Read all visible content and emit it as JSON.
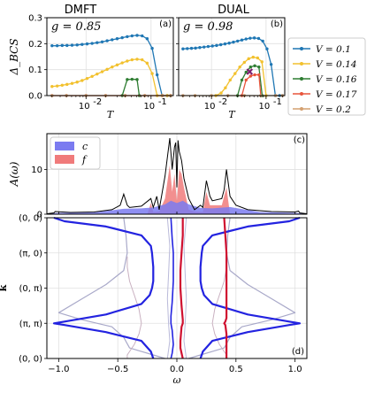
{
  "chart_data": [
    {
      "id": "a",
      "type": "line",
      "title": "DMFT",
      "panel_label": "(a)",
      "annotation": "g = 0.85",
      "ylabel": "Δ_BCS",
      "xlabel": "T",
      "xscale": "log",
      "xlim": [
        0.0025,
        0.22
      ],
      "ylim": [
        0,
        0.3
      ],
      "yticks": [
        "0.0",
        "0.1",
        "0.2",
        "0.3"
      ],
      "xticks": [
        {
          "value": 0.01,
          "label": "10",
          "exp": "-2"
        },
        {
          "value": 0.1,
          "label": "10",
          "exp": "-1"
        }
      ],
      "series": [
        {
          "name": "V = 0.1",
          "color": "#1f77b4",
          "x": [
            0.003,
            0.0036,
            0.0043,
            0.0051,
            0.0061,
            0.0073,
            0.0087,
            0.0104,
            0.0124,
            0.0148,
            0.0177,
            0.0211,
            0.0252,
            0.0301,
            0.036,
            0.043,
            0.051,
            0.061,
            0.073,
            0.087,
            0.104,
            0.124,
            0.148,
            0.177,
            0.2
          ],
          "y": [
            0.192,
            0.192,
            0.193,
            0.193,
            0.194,
            0.195,
            0.197,
            0.199,
            0.201,
            0.204,
            0.207,
            0.211,
            0.215,
            0.219,
            0.223,
            0.227,
            0.23,
            0.232,
            0.23,
            0.219,
            0.182,
            0.08,
            0.0,
            0.0,
            0.0
          ]
        },
        {
          "name": "V = 0.14",
          "color": "#f2c12e",
          "x": [
            0.003,
            0.0036,
            0.0043,
            0.0051,
            0.0061,
            0.0073,
            0.0087,
            0.0104,
            0.0124,
            0.0148,
            0.0177,
            0.0211,
            0.0252,
            0.0301,
            0.036,
            0.043,
            0.051,
            0.061,
            0.073,
            0.087,
            0.104,
            0.124,
            0.148,
            0.177,
            0.2
          ],
          "y": [
            0.035,
            0.037,
            0.04,
            0.043,
            0.047,
            0.052,
            0.058,
            0.066,
            0.074,
            0.083,
            0.092,
            0.101,
            0.11,
            0.118,
            0.126,
            0.133,
            0.138,
            0.14,
            0.138,
            0.125,
            0.085,
            0.0,
            0.0,
            0.0,
            0.0
          ]
        },
        {
          "name": "V = 0.16",
          "color": "#2e7d32",
          "x": [
            0.036,
            0.043,
            0.051,
            0.061,
            0.066
          ],
          "y": [
            0.0,
            0.062,
            0.063,
            0.062,
            0.0
          ]
        },
        {
          "name": "V = 0.17",
          "color": "#e8553c",
          "x": [
            0.003,
            0.005,
            0.01,
            0.02,
            0.04,
            0.08,
            0.15,
            0.2
          ],
          "y": [
            0,
            0,
            0,
            0,
            0,
            0,
            0,
            0
          ]
        },
        {
          "name": "V = 0.2",
          "color": "#d4a070",
          "x": [
            0.003,
            0.005,
            0.01,
            0.02,
            0.04,
            0.08,
            0.15,
            0.2
          ],
          "y": [
            0,
            0,
            0,
            0,
            0,
            0,
            0,
            0
          ]
        }
      ]
    },
    {
      "id": "b",
      "type": "line",
      "title": "DUAL",
      "panel_label": "(b)",
      "annotation": "g = 0.98",
      "xlabel": "T",
      "xscale": "log",
      "xlim": [
        0.0025,
        0.22
      ],
      "ylim": [
        0,
        0.3
      ],
      "xticks": [
        {
          "value": 0.01,
          "label": "10",
          "exp": "-2"
        },
        {
          "value": 0.1,
          "label": "10",
          "exp": "-1"
        }
      ],
      "special_marker": {
        "x": 0.05,
        "y": 0.092,
        "symbol": "x",
        "color": "#7b1f6e"
      },
      "series": [
        {
          "name": "V = 0.1",
          "color": "#1f77b4",
          "x": [
            0.003,
            0.0036,
            0.0043,
            0.0051,
            0.0061,
            0.0073,
            0.0087,
            0.0104,
            0.0124,
            0.0148,
            0.0177,
            0.0211,
            0.0252,
            0.0301,
            0.036,
            0.043,
            0.051,
            0.061,
            0.073,
            0.087,
            0.104,
            0.124,
            0.148,
            0.177,
            0.2
          ],
          "y": [
            0.18,
            0.181,
            0.182,
            0.183,
            0.185,
            0.187,
            0.189,
            0.191,
            0.193,
            0.196,
            0.199,
            0.202,
            0.206,
            0.21,
            0.214,
            0.218,
            0.221,
            0.222,
            0.22,
            0.21,
            0.18,
            0.12,
            0.0,
            0.0,
            0.0
          ]
        },
        {
          "name": "V = 0.14",
          "color": "#f2c12e",
          "x": [
            0.012,
            0.015,
            0.018,
            0.022,
            0.027,
            0.033,
            0.04,
            0.048,
            0.058,
            0.07,
            0.084,
            0.1
          ],
          "y": [
            0.0,
            0.01,
            0.03,
            0.06,
            0.085,
            0.11,
            0.128,
            0.142,
            0.148,
            0.145,
            0.13,
            0.0
          ]
        },
        {
          "name": "V = 0.16",
          "color": "#2e7d32",
          "x": [
            0.03,
            0.036,
            0.043,
            0.052,
            0.062,
            0.074,
            0.085
          ],
          "y": [
            0.0,
            0.06,
            0.09,
            0.11,
            0.115,
            0.11,
            0.0
          ]
        },
        {
          "name": "V = 0.17",
          "color": "#e8553c",
          "x": [
            0.036,
            0.043,
            0.052,
            0.062,
            0.074,
            0.08
          ],
          "y": [
            0.0,
            0.06,
            0.075,
            0.08,
            0.08,
            0.0
          ]
        },
        {
          "name": "V = 0.2",
          "color": "#d4a070",
          "x": [
            0.003,
            0.005,
            0.01,
            0.02,
            0.04,
            0.08,
            0.15,
            0.2
          ],
          "y": [
            0,
            0,
            0,
            0,
            0,
            0,
            0,
            0
          ]
        }
      ]
    },
    {
      "id": "c",
      "type": "area",
      "panel_label": "(c)",
      "ylabel": "A(ω)",
      "xlim": [
        -1.1,
        1.1
      ],
      "ylim": [
        0,
        18
      ],
      "yticks": [
        "0",
        "10"
      ],
      "legend": [
        {
          "label": "c",
          "color": "#7b7bf0"
        },
        {
          "label": "f",
          "color": "#f07b7b"
        }
      ],
      "envelope_total": {
        "x": [
          -1.1,
          -1.04,
          -1.03,
          -0.9,
          -0.7,
          -0.55,
          -0.48,
          -0.45,
          -0.42,
          -0.4,
          -0.3,
          -0.22,
          -0.2,
          -0.17,
          -0.15,
          -0.1,
          -0.06,
          -0.04,
          -0.02,
          -0.01,
          0.0,
          0.01,
          0.02,
          0.04,
          0.06,
          0.1,
          0.15,
          0.2,
          0.22,
          0.25,
          0.28,
          0.3,
          0.38,
          0.4,
          0.42,
          0.45,
          0.5,
          0.6,
          0.8,
          1.0,
          1.03,
          1.04,
          1.1
        ],
        "y": [
          0.1,
          0.3,
          0.6,
          0.4,
          0.5,
          1.0,
          2.0,
          4.5,
          2.0,
          1.5,
          1.8,
          3.5,
          1.5,
          4.0,
          1.0,
          8.5,
          17.0,
          10.0,
          15.0,
          16.0,
          6.0,
          16.5,
          14.0,
          12.0,
          8.0,
          3.5,
          1.0,
          2.0,
          1.5,
          7.5,
          4.0,
          3.0,
          3.5,
          5.5,
          10.0,
          4.0,
          2.0,
          1.0,
          0.6,
          0.5,
          0.7,
          0.3,
          0.1
        ]
      },
      "envelope_c": {
        "x": [
          -1.1,
          -1.0,
          -0.7,
          -0.45,
          -0.3,
          -0.2,
          -0.1,
          -0.05,
          0.0,
          0.05,
          0.1,
          0.2,
          0.3,
          0.45,
          0.7,
          1.0,
          1.1
        ],
        "y": [
          0.1,
          0.3,
          0.4,
          1.2,
          1.3,
          1.5,
          2.2,
          3.0,
          2.5,
          3.0,
          2.2,
          1.4,
          1.3,
          1.6,
          0.5,
          0.3,
          0.1
        ]
      },
      "envelope_f": {
        "x": [
          -0.25,
          -0.22,
          -0.2,
          -0.15,
          -0.1,
          -0.06,
          -0.04,
          -0.02,
          0.0,
          0.02,
          0.04,
          0.06,
          0.1,
          0.15,
          0.22,
          0.25,
          0.28,
          0.38,
          0.42,
          0.45
        ],
        "y": [
          0.0,
          2.5,
          0.5,
          0.6,
          3.5,
          11.0,
          5.0,
          9.0,
          3.0,
          10.0,
          9.0,
          6.0,
          1.0,
          0.6,
          0.5,
          5.0,
          2.0,
          2.0,
          6.0,
          0.0
        ]
      }
    },
    {
      "id": "d",
      "type": "line",
      "panel_label": "(d)",
      "ylabel": "k",
      "xlabel": "ω",
      "xlim": [
        -1.1,
        1.1
      ],
      "ylim": [
        0,
        4
      ],
      "xticks": [
        "−1.0",
        "−0.5",
        "0.0",
        "0.5",
        "1.0"
      ],
      "yticks": [
        {
          "value": 4,
          "label": "(0, 0)"
        },
        {
          "value": 3,
          "label": "(π, 0)"
        },
        {
          "value": 2,
          "label": "(0, π)"
        },
        {
          "value": 1,
          "label": "(π, π)"
        },
        {
          "value": 0,
          "label": "(0, 0)"
        }
      ],
      "bands": [
        {
          "color": "#2323e0",
          "width": 2.2,
          "x": [
            -1.04,
            -0.95,
            -0.6,
            -0.3,
            -0.22,
            -0.21,
            -0.2,
            -0.2,
            -0.21,
            -0.23,
            -0.3,
            -0.6,
            -0.95,
            -1.04,
            -0.95,
            -0.6,
            -0.3,
            -0.22,
            -0.2
          ],
          "k": [
            4,
            3.9,
            3.75,
            3.5,
            3.2,
            3.0,
            2.6,
            2.2,
            2.0,
            1.8,
            1.55,
            1.25,
            1.05,
            1.0,
            0.95,
            0.75,
            0.5,
            0.2,
            0.0
          ]
        },
        {
          "color": "#2323e0",
          "width": 2.2,
          "x": [
            1.04,
            0.95,
            0.6,
            0.3,
            0.22,
            0.21,
            0.2,
            0.2,
            0.21,
            0.23,
            0.3,
            0.6,
            0.95,
            1.04,
            0.95,
            0.6,
            0.3,
            0.22,
            0.2
          ],
          "k": [
            4,
            3.9,
            3.75,
            3.5,
            3.2,
            3.0,
            2.6,
            2.2,
            2.0,
            1.8,
            1.55,
            1.25,
            1.05,
            1.0,
            0.95,
            0.75,
            0.5,
            0.2,
            0.0
          ]
        },
        {
          "color": "#d01030",
          "width": 2.2,
          "x": [
            0.05,
            0.05,
            0.04,
            0.03,
            0.03,
            0.04,
            0.05,
            0.05,
            0.04,
            0.03,
            0.03,
            0.04,
            0.05
          ],
          "k": [
            4,
            3.5,
            3.0,
            2.5,
            2.0,
            1.5,
            1.1,
            1.0,
            0.9,
            0.5,
            0.3,
            0.15,
            0.0
          ]
        },
        {
          "color": "#d01030",
          "width": 2.2,
          "x": [
            0.4,
            0.41,
            0.42,
            0.42,
            0.42,
            0.42,
            0.42,
            0.42,
            0.41,
            0.4,
            0.41,
            0.42,
            0.42
          ],
          "k": [
            4,
            3.5,
            3.0,
            2.5,
            2.0,
            1.6,
            1.3,
            1.15,
            1.05,
            1.0,
            0.95,
            0.7,
            0.0
          ]
        },
        {
          "color": "#2323e0",
          "width": 1.6,
          "x": [
            -0.05,
            -0.04,
            -0.03,
            -0.03,
            -0.04,
            -0.05,
            -0.05,
            -0.04,
            -0.03,
            -0.04,
            -0.05
          ],
          "k": [
            4,
            3.4,
            3.0,
            2.2,
            1.6,
            1.2,
            1.0,
            0.8,
            0.4,
            0.15,
            0.0
          ]
        },
        {
          "color": "#a9a9c9",
          "width": 1.2,
          "x": [
            -0.45,
            -0.43,
            -0.42,
            -0.45,
            -0.6,
            -0.8,
            -1.0,
            -0.8,
            -0.55,
            -0.45,
            -0.4,
            -0.3,
            -0.2,
            -0.1
          ],
          "k": [
            4,
            3.5,
            3.0,
            2.5,
            2.1,
            1.7,
            1.3,
            1.1,
            0.9,
            0.6,
            0.3,
            0.2,
            0.1,
            0.0
          ]
        },
        {
          "color": "#a9a9c9",
          "width": 1.2,
          "x": [
            0.45,
            0.43,
            0.42,
            0.45,
            0.6,
            0.8,
            1.0,
            0.8,
            0.55,
            0.45,
            0.4,
            0.3,
            0.2,
            0.1
          ],
          "k": [
            4,
            3.5,
            3.0,
            2.5,
            2.1,
            1.7,
            1.3,
            1.1,
            0.9,
            0.6,
            0.3,
            0.2,
            0.1,
            0.0
          ]
        },
        {
          "color": "#c9b0c0",
          "width": 1.0,
          "x": [
            -0.42,
            -0.42,
            -0.4,
            -0.36,
            -0.32,
            -0.3,
            -0.32,
            -0.36,
            -0.4,
            -0.42,
            -0.42
          ],
          "k": [
            2.9,
            2.6,
            2.2,
            1.8,
            1.4,
            1.0,
            0.7,
            0.4,
            0.2,
            0.1,
            0.0
          ]
        },
        {
          "color": "#c9b0c0",
          "width": 1.0,
          "x": [
            0.42,
            0.42,
            0.4,
            0.36,
            0.32,
            0.3,
            0.32,
            0.36,
            0.4,
            0.42,
            0.42
          ],
          "k": [
            2.9,
            2.6,
            2.2,
            1.8,
            1.4,
            1.0,
            0.7,
            0.4,
            0.2,
            0.1,
            0.0
          ]
        },
        {
          "color": "#b9b9d9",
          "width": 1.0,
          "x": [
            -0.08,
            -0.06,
            -0.07,
            -0.08,
            -0.07,
            -0.06,
            -0.08
          ],
          "k": [
            4,
            3.2,
            2.4,
            1.7,
            1.0,
            0.5,
            0.0
          ]
        },
        {
          "color": "#b9b9d9",
          "width": 1.0,
          "x": [
            0.08,
            0.06,
            0.07,
            0.08,
            0.07,
            0.06,
            0.08
          ],
          "k": [
            4,
            3.2,
            2.4,
            1.7,
            1.0,
            0.5,
            0.0
          ]
        }
      ]
    }
  ],
  "legend": {
    "entries": [
      {
        "label": "V = 0.1",
        "color": "#1f77b4"
      },
      {
        "label": "V = 0.14",
        "color": "#f2c12e"
      },
      {
        "label": "V = 0.16",
        "color": "#2e7d32"
      },
      {
        "label": "V = 0.17",
        "color": "#e8553c"
      },
      {
        "label": "V = 0.2",
        "color": "#d4a070"
      }
    ]
  }
}
